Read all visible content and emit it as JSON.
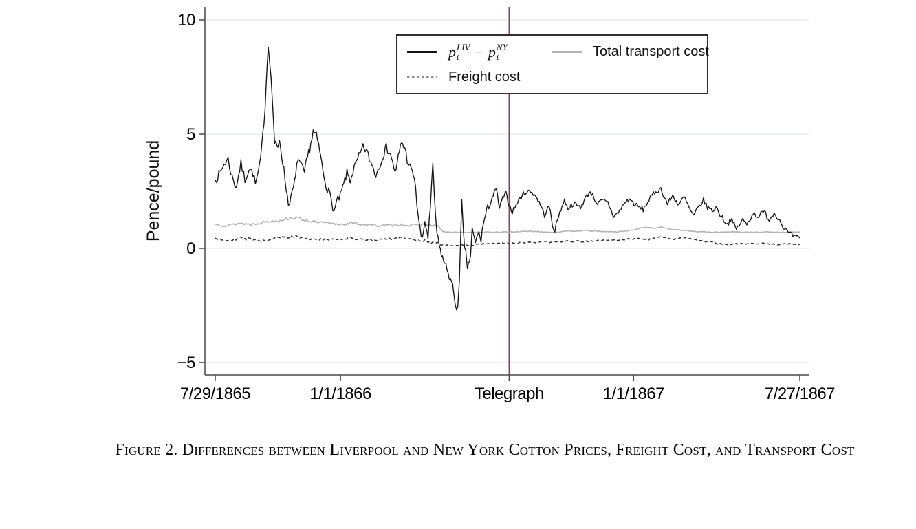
{
  "figure": {
    "caption": "Figure 2. Differences between Liverpool and New York Cotton Prices, Freight Cost, and Transport Cost"
  },
  "legend": {
    "series1_math": {
      "p": "p",
      "sub": "t",
      "sup_liv": "LIV",
      "sup_ny": "NY",
      "minus": "−"
    },
    "series2_label": "Total transport cost",
    "series3_label": "Freight cost"
  },
  "colors": {
    "price_gap_line": "#141414",
    "transport_line": "#b3b3b3",
    "freight_line": "#2e2e2e",
    "telegraph_line": "#8a3e4a",
    "gridline": "#edf1f5",
    "axis": "#4a4a4a"
  },
  "chart_data": {
    "type": "line",
    "title": "",
    "xlabel": "",
    "ylabel": "Pence/pound",
    "ylim": [
      -5.5,
      10.6
    ],
    "grid": true,
    "legend_position": "top-center-inside",
    "x_unit": "days since 7/29/1865",
    "yticks": [
      10,
      5,
      0,
      -5
    ],
    "ytick_labels": [
      "10",
      "5",
      "0",
      "−5"
    ],
    "xticks_days": [
      0,
      156,
      366,
      521,
      728
    ],
    "xtick_labels": [
      "7/29/1865",
      "1/1/1866",
      "Telegraph",
      "1/1/1867",
      "7/27/1867"
    ],
    "vline": {
      "label": "Telegraph",
      "day": 366
    },
    "series": [
      {
        "name": "p_t^LIV − p_t^NY (Liverpool–New York price difference)",
        "style": "solid",
        "color": "#141414",
        "points": [
          [
            0,
            3.0
          ],
          [
            6,
            3.3
          ],
          [
            11,
            3.7
          ],
          [
            16,
            3.9
          ],
          [
            21,
            3.1
          ],
          [
            26,
            2.7
          ],
          [
            32,
            3.7
          ],
          [
            37,
            3.0
          ],
          [
            42,
            3.5
          ],
          [
            47,
            3.3
          ],
          [
            50,
            2.8
          ],
          [
            55,
            3.5
          ],
          [
            58,
            4.4
          ],
          [
            62,
            6.2
          ],
          [
            66,
            9.0
          ],
          [
            68,
            8.2
          ],
          [
            71,
            6.6
          ],
          [
            74,
            4.6
          ],
          [
            78,
            4.35
          ],
          [
            80,
            4.8
          ],
          [
            84,
            3.8
          ],
          [
            87,
            3.0
          ],
          [
            91,
            1.95
          ],
          [
            96,
            2.4
          ],
          [
            100,
            3.1
          ],
          [
            103,
            4.0
          ],
          [
            107,
            3.6
          ],
          [
            111,
            3.3
          ],
          [
            115,
            4.0
          ],
          [
            119,
            4.6
          ],
          [
            122,
            5.1
          ],
          [
            126,
            4.9
          ],
          [
            130,
            4.3
          ],
          [
            134,
            3.4
          ],
          [
            138,
            2.8
          ],
          [
            143,
            2.3
          ],
          [
            148,
            1.6
          ],
          [
            151,
            2.0
          ],
          [
            156,
            2.3
          ],
          [
            160,
            2.8
          ],
          [
            164,
            3.3
          ],
          [
            168,
            3.0
          ],
          [
            173,
            3.5
          ],
          [
            179,
            4.0
          ],
          [
            184,
            4.4
          ],
          [
            188,
            4.3
          ],
          [
            192,
            3.9
          ],
          [
            197,
            3.5
          ],
          [
            200,
            3.2
          ],
          [
            204,
            3.6
          ],
          [
            209,
            4.1
          ],
          [
            213,
            4.4
          ],
          [
            218,
            4.2
          ],
          [
            221,
            3.7
          ],
          [
            225,
            3.3
          ],
          [
            228,
            4.0
          ],
          [
            232,
            4.65
          ],
          [
            236,
            4.4
          ],
          [
            239,
            3.9
          ],
          [
            244,
            3.4
          ],
          [
            248,
            3.1
          ],
          [
            251,
            2.0
          ],
          [
            255,
            0.8
          ],
          [
            258,
            0.3
          ],
          [
            261,
            1.2
          ],
          [
            265,
            0.5
          ],
          [
            268,
            1.8
          ],
          [
            271,
            3.6
          ],
          [
            273,
            2.2
          ],
          [
            276,
            0.6
          ],
          [
            279,
            0.1
          ],
          [
            283,
            -0.4
          ],
          [
            286,
            -0.7
          ],
          [
            290,
            -1.0
          ],
          [
            293,
            -1.4
          ],
          [
            297,
            -1.9
          ],
          [
            299,
            -2.4
          ],
          [
            302,
            -2.65
          ],
          [
            304,
            -1.6
          ],
          [
            307,
            2.0
          ],
          [
            309,
            0.6
          ],
          [
            312,
            -0.3
          ],
          [
            314,
            -0.8
          ],
          [
            318,
            -0.4
          ],
          [
            320,
            0.8
          ],
          [
            324,
            0.2
          ],
          [
            327,
            0.7
          ],
          [
            331,
            0.4
          ],
          [
            334,
            1.1
          ],
          [
            338,
            1.6
          ],
          [
            342,
            2.0
          ],
          [
            346,
            2.3
          ],
          [
            350,
            2.6
          ],
          [
            354,
            1.75
          ],
          [
            358,
            2.2
          ],
          [
            362,
            2.4
          ],
          [
            366,
            1.9
          ],
          [
            370,
            1.6
          ],
          [
            373,
            1.8
          ],
          [
            378,
            2.1
          ],
          [
            385,
            2.45
          ],
          [
            393,
            2.5
          ],
          [
            399,
            2.3
          ],
          [
            405,
            1.9
          ],
          [
            410,
            1.45
          ],
          [
            416,
            1.85
          ],
          [
            420,
            1.0
          ],
          [
            423,
            0.8
          ],
          [
            429,
            1.6
          ],
          [
            435,
            2.1
          ],
          [
            439,
            1.75
          ],
          [
            446,
            1.95
          ],
          [
            455,
            1.8
          ],
          [
            461,
            2.2
          ],
          [
            467,
            2.5
          ],
          [
            476,
            1.95
          ],
          [
            483,
            2.1
          ],
          [
            489,
            2.0
          ],
          [
            496,
            1.4
          ],
          [
            502,
            1.55
          ],
          [
            510,
            2.0
          ],
          [
            516,
            2.15
          ],
          [
            523,
            1.9
          ],
          [
            533,
            1.7
          ],
          [
            540,
            2.1
          ],
          [
            547,
            2.45
          ],
          [
            555,
            2.6
          ],
          [
            563,
            1.95
          ],
          [
            570,
            2.3
          ],
          [
            577,
            1.9
          ],
          [
            584,
            2.25
          ],
          [
            591,
            1.7
          ],
          [
            596,
            1.4
          ],
          [
            600,
            1.7
          ],
          [
            608,
            2.1
          ],
          [
            613,
            1.8
          ],
          [
            619,
            1.65
          ],
          [
            624,
            1.8
          ],
          [
            630,
            1.4
          ],
          [
            638,
            1.05
          ],
          [
            642,
            1.3
          ],
          [
            649,
            0.85
          ],
          [
            657,
            1.25
          ],
          [
            662,
            1.05
          ],
          [
            670,
            1.55
          ],
          [
            675,
            1.4
          ],
          [
            684,
            1.6
          ],
          [
            690,
            1.25
          ],
          [
            696,
            1.55
          ],
          [
            701,
            1.35
          ],
          [
            709,
            0.85
          ],
          [
            715,
            0.65
          ],
          [
            721,
            0.5
          ],
          [
            728,
            0.45
          ]
        ]
      },
      {
        "name": "Total transport cost",
        "style": "solid",
        "color": "#b3b3b3",
        "points": [
          [
            0,
            1.05
          ],
          [
            15,
            1.0
          ],
          [
            30,
            1.1
          ],
          [
            45,
            1.05
          ],
          [
            60,
            1.15
          ],
          [
            75,
            1.2
          ],
          [
            90,
            1.3
          ],
          [
            100,
            1.35
          ],
          [
            110,
            1.25
          ],
          [
            125,
            1.15
          ],
          [
            140,
            1.1
          ],
          [
            155,
            1.05
          ],
          [
            170,
            1.1
          ],
          [
            185,
            1.05
          ],
          [
            200,
            1.0
          ],
          [
            215,
            1.0
          ],
          [
            230,
            1.05
          ],
          [
            245,
            1.0
          ],
          [
            258,
            1.05
          ],
          [
            270,
            1.0
          ],
          [
            278,
            0.95
          ],
          [
            284,
            0.72
          ],
          [
            300,
            0.7
          ],
          [
            330,
            0.7
          ],
          [
            366,
            0.72
          ],
          [
            395,
            0.75
          ],
          [
            420,
            0.7
          ],
          [
            440,
            0.75
          ],
          [
            460,
            0.78
          ],
          [
            480,
            0.74
          ],
          [
            500,
            0.72
          ],
          [
            520,
            0.8
          ],
          [
            535,
            0.93
          ],
          [
            545,
            0.88
          ],
          [
            555,
            0.93
          ],
          [
            565,
            0.85
          ],
          [
            580,
            0.8
          ],
          [
            600,
            0.73
          ],
          [
            620,
            0.7
          ],
          [
            645,
            0.73
          ],
          [
            665,
            0.7
          ],
          [
            685,
            0.72
          ],
          [
            705,
            0.7
          ],
          [
            728,
            0.72
          ]
        ]
      },
      {
        "name": "Freight cost",
        "style": "dashed",
        "color": "#2e2e2e",
        "points": [
          [
            0,
            0.45
          ],
          [
            15,
            0.35
          ],
          [
            30,
            0.45
          ],
          [
            45,
            0.4
          ],
          [
            60,
            0.35
          ],
          [
            75,
            0.45
          ],
          [
            90,
            0.5
          ],
          [
            100,
            0.55
          ],
          [
            110,
            0.45
          ],
          [
            125,
            0.4
          ],
          [
            140,
            0.35
          ],
          [
            155,
            0.4
          ],
          [
            170,
            0.45
          ],
          [
            185,
            0.4
          ],
          [
            200,
            0.35
          ],
          [
            215,
            0.4
          ],
          [
            230,
            0.45
          ],
          [
            245,
            0.4
          ],
          [
            255,
            0.35
          ],
          [
            265,
            0.3
          ],
          [
            275,
            0.25
          ],
          [
            283,
            0.15
          ],
          [
            300,
            0.12
          ],
          [
            320,
            0.15
          ],
          [
            340,
            0.2
          ],
          [
            366,
            0.22
          ],
          [
            390,
            0.25
          ],
          [
            410,
            0.28
          ],
          [
            430,
            0.3
          ],
          [
            450,
            0.3
          ],
          [
            470,
            0.32
          ],
          [
            490,
            0.35
          ],
          [
            510,
            0.38
          ],
          [
            525,
            0.45
          ],
          [
            540,
            0.4
          ],
          [
            555,
            0.5
          ],
          [
            570,
            0.42
          ],
          [
            585,
            0.45
          ],
          [
            600,
            0.35
          ],
          [
            615,
            0.3
          ],
          [
            625,
            0.2
          ],
          [
            640,
            0.18
          ],
          [
            660,
            0.2
          ],
          [
            680,
            0.22
          ],
          [
            700,
            0.18
          ],
          [
            715,
            0.2
          ],
          [
            728,
            0.18
          ]
        ]
      }
    ]
  }
}
